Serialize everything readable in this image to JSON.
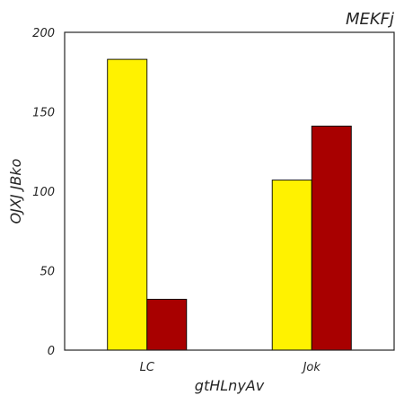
{
  "chart_data": {
    "type": "bar",
    "title": "MEKFj",
    "xlabel": "gtHLnyAv",
    "ylabel": "OJXJ JBko",
    "categories": [
      "LC",
      "Jok"
    ],
    "series": [
      {
        "color": "#fff200",
        "values": [
          183,
          107
        ]
      },
      {
        "color": "#a80000",
        "values": [
          32,
          141
        ]
      }
    ],
    "ylim": [
      0,
      200
    ],
    "yticks": [
      0,
      50,
      100,
      150,
      200
    ],
    "grid": false,
    "legend": "none"
  }
}
